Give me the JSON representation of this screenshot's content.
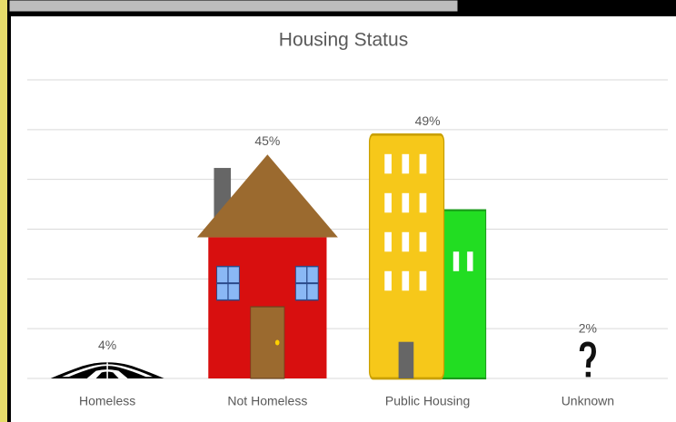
{
  "chart_data": {
    "type": "pictograph",
    "title": "Housing Status",
    "categories": [
      "Homeless",
      "Not Homeless",
      "Public Housing",
      "Unknown"
    ],
    "values": [
      4,
      45,
      49,
      2
    ],
    "value_labels": [
      "4%",
      "45%",
      "49%",
      "2%"
    ],
    "ylim": [
      0,
      60
    ],
    "yticks": [
      0,
      10,
      20,
      30,
      40,
      50,
      60
    ],
    "grid": true
  }
}
